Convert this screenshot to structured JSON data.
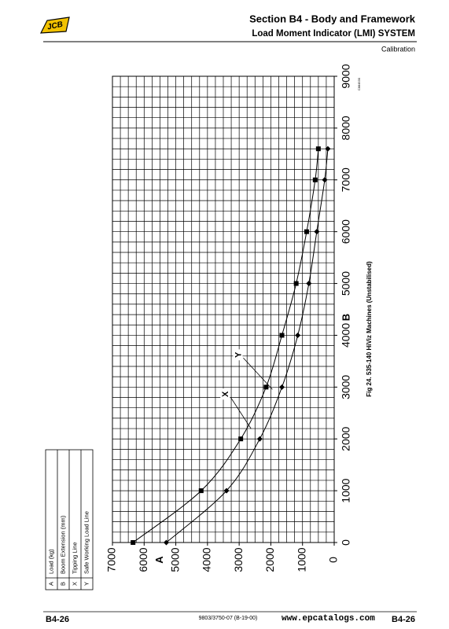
{
  "header": {
    "logo": "JCB",
    "section_title": "Section B4 - Body and Framework",
    "subtitle": "Load Moment Indicator (LMI) SYSTEM",
    "topic": "Calibration"
  },
  "chart_data": {
    "type": "line",
    "caption": "Fig 24. 535-140 HiViz Machines (Unstabilised)",
    "figure_code": "C884530",
    "x_label": "B",
    "y_label": "A",
    "x": [
      0,
      1000,
      2000,
      3000,
      4000,
      5000,
      6000,
      7000,
      7600
    ],
    "series": [
      {
        "name": "X",
        "marker": "square",
        "color": "#000000",
        "values": [
          6350,
          4200,
          2950,
          2150,
          1650,
          1200,
          870,
          600,
          500
        ]
      },
      {
        "name": "Y",
        "marker": "diamond",
        "color": "#000000",
        "values": [
          5300,
          3400,
          2350,
          1650,
          1150,
          800,
          550,
          300,
          200
        ]
      }
    ],
    "xlim": [
      0,
      9000
    ],
    "ylim": [
      0,
      7000
    ],
    "xticks": [
      0,
      1000,
      2000,
      3000,
      4000,
      5000,
      6000,
      7000,
      8000,
      9000
    ],
    "yticks": [
      0,
      1000,
      2000,
      3000,
      4000,
      5000,
      6000,
      7000
    ],
    "grid": true,
    "xminor_step": 200,
    "yminor_step": 250
  },
  "legend_table": {
    "rows": [
      [
        "A",
        "Load (kg)"
      ],
      [
        "B",
        "Boom Extension (mm)"
      ],
      [
        "X",
        "Tipping Line"
      ],
      [
        "Y",
        "Safe Working Load Line"
      ]
    ]
  },
  "footer": {
    "page_left": "B4-26",
    "doc_number": "9803/3750-07 (B-19-00)",
    "website": "www.epcatalogs.com",
    "page_right": "B4-26"
  }
}
